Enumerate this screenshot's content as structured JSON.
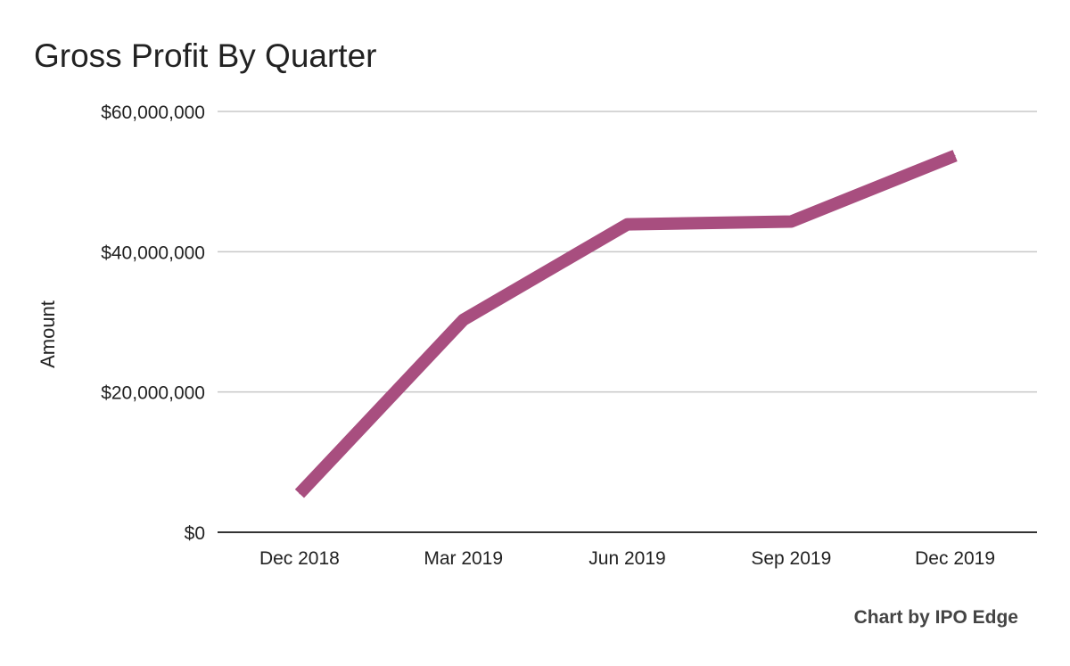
{
  "colors": {
    "line": "#a84e7f",
    "grid": "#c8c8c8",
    "axis": "#333333",
    "text": "#222222",
    "credit": "#444444"
  },
  "chart_data": {
    "type": "line",
    "title": "Gross Profit By Quarter",
    "xlabel": "",
    "ylabel": "Amount",
    "categories": [
      "Dec 2018",
      "Mar 2019",
      "Jun 2019",
      "Sep 2019",
      "Dec 2019"
    ],
    "series": [
      {
        "values": [
          5500000,
          30300000,
          43900000,
          44300000,
          53700000
        ]
      }
    ],
    "ylim": [
      0,
      60000000
    ],
    "yticks": [
      0,
      20000000,
      40000000,
      60000000
    ],
    "ytick_labels": [
      "$0",
      "$20,000,000",
      "$40,000,000",
      "$60,000,000"
    ],
    "grid": true,
    "legend": "none",
    "credit": "Chart by IPO Edge"
  }
}
